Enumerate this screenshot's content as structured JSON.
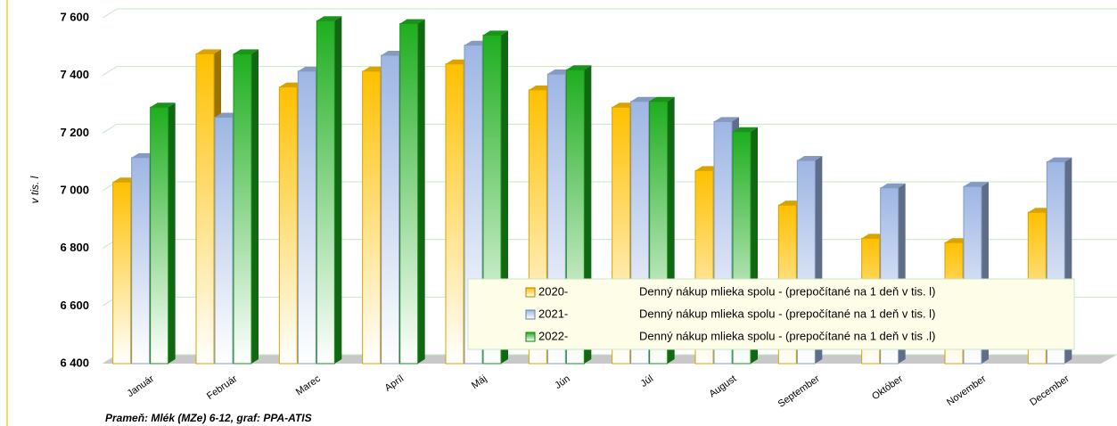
{
  "chart_data": {
    "type": "bar",
    "y_label": "v tis. l",
    "source": "Prameň: Mlék (MZe) 6-12, graf: PPA-ATIS",
    "categories": [
      "Január",
      "Február",
      "Marec",
      "Apríl",
      "Máj",
      "Jún",
      "Júl",
      "August",
      "September",
      "Október",
      "November",
      "December"
    ],
    "series": [
      {
        "name": "2020-",
        "description": "Denný nákup mlieka spolu - (prepočítané na 1 deň v tis. l)",
        "color": "#ffc000",
        "values": [
          7030,
          7475,
          7360,
          7415,
          7440,
          7350,
          7290,
          7070,
          6950,
          6835,
          6820,
          6925
        ]
      },
      {
        "name": "2021-",
        "description": "Denný nákup mlieka spolu - (prepočítané na 1 deň v tis. l)",
        "color": "#9eb6e4",
        "values": [
          7115,
          7255,
          7415,
          7470,
          7505,
          7405,
          7310,
          7240,
          7105,
          7010,
          7015,
          7100
        ]
      },
      {
        "name": "2022-",
        "description": "Denný nákup mlieka spolu - (prepočítané na 1 deň v tis .l)",
        "color": "#1fae1f",
        "values": [
          7290,
          7475,
          7590,
          7580,
          7540,
          7420,
          7310,
          7205,
          null,
          null,
          null,
          null
        ]
      }
    ],
    "ylim": [
      6400,
      7600
    ],
    "yticks": [
      {
        "value": 6400,
        "label": "6 400"
      },
      {
        "value": 6600,
        "label": "6 600"
      },
      {
        "value": 6800,
        "label": "6 800"
      },
      {
        "value": 7000,
        "label": "7 000"
      },
      {
        "value": 7200,
        "label": "7 200"
      },
      {
        "value": 7400,
        "label": "7 400"
      },
      {
        "value": 7600,
        "label": "7 600"
      }
    ],
    "grid": true
  }
}
